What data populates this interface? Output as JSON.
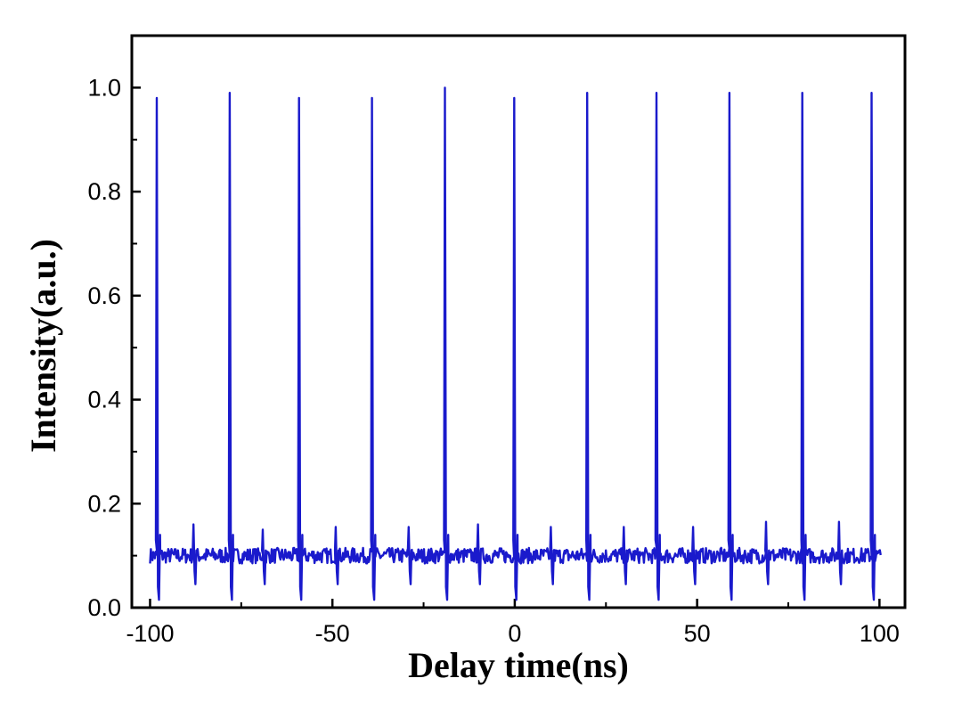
{
  "chart_data": {
    "type": "line",
    "title": "",
    "xlabel": "Delay time(ns)",
    "ylabel": "Intensity(a.u.)",
    "xlim": [
      -105,
      107
    ],
    "ylim": [
      0.0,
      1.1
    ],
    "x_ticks": [
      -100,
      -50,
      0,
      50,
      100
    ],
    "x_tick_labels": [
      "-100",
      "-50",
      "0",
      "50",
      "100"
    ],
    "y_ticks": [
      0.0,
      0.2,
      0.4,
      0.6,
      0.8,
      1.0
    ],
    "y_tick_labels": [
      "0.0",
      "0.2",
      "0.4",
      "0.6",
      "0.8",
      "1.0"
    ],
    "grid": false,
    "legend": "none",
    "series_color": "#1a1acc",
    "baseline": 0.1,
    "main_peaks": {
      "x": [
        -98,
        -78,
        -59,
        -39,
        -19,
        0,
        20,
        39,
        59,
        79,
        98
      ],
      "y": [
        0.98,
        0.99,
        0.98,
        0.98,
        1.0,
        0.98,
        0.99,
        0.99,
        0.99,
        0.99,
        0.99
      ]
    },
    "minor_peaks": {
      "x": [
        -88,
        -69,
        -49,
        -29,
        -10,
        10,
        30,
        49,
        69,
        89
      ],
      "y": [
        0.16,
        0.15,
        0.155,
        0.155,
        0.16,
        0.155,
        0.155,
        0.155,
        0.165,
        0.165
      ]
    }
  }
}
